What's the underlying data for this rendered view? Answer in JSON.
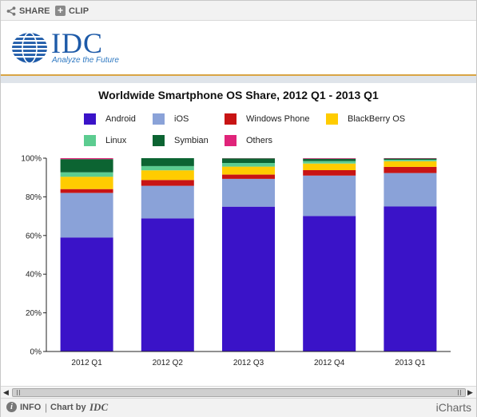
{
  "toolbar": {
    "share_label": "SHARE",
    "clip_label": "CLIP"
  },
  "brand": {
    "name": "IDC",
    "tagline": "Analyze the Future",
    "color": "#1d5aa8"
  },
  "chart_data": {
    "type": "bar",
    "stacked": true,
    "title": "Worldwide Smartphone OS Share, 2012 Q1 - 2013 Q1",
    "categories": [
      "2012 Q1",
      "2012 Q2",
      "2012 Q3",
      "2012 Q4",
      "2013 Q1"
    ],
    "ylim": [
      0,
      100
    ],
    "yticks": [
      "0%",
      "20%",
      "40%",
      "60%",
      "80%",
      "100%"
    ],
    "grid": false,
    "legend_position": "top",
    "series": [
      {
        "name": "Android",
        "color": "#3a13c8",
        "values": [
          59.0,
          68.9,
          74.9,
          70.1,
          75.0
        ]
      },
      {
        "name": "iOS",
        "color": "#8aa2d8",
        "values": [
          23.0,
          16.8,
          14.4,
          20.9,
          17.3
        ]
      },
      {
        "name": "Windows Phone",
        "color": "#c81414",
        "values": [
          2.0,
          3.0,
          2.2,
          2.8,
          3.2
        ]
      },
      {
        "name": "BlackBerry OS",
        "color": "#ffcc00",
        "values": [
          6.4,
          5.0,
          4.1,
          3.4,
          2.9
        ]
      },
      {
        "name": "Linux",
        "color": "#5ccc90",
        "values": [
          2.3,
          2.2,
          1.9,
          1.3,
          0.8
        ]
      },
      {
        "name": "Symbian",
        "color": "#0c6432",
        "values": [
          6.8,
          4.1,
          2.4,
          1.2,
          0.6
        ]
      },
      {
        "name": "Others",
        "color": "#e0247a",
        "values": [
          0.5,
          0.0,
          0.1,
          0.3,
          0.2
        ]
      }
    ]
  },
  "footer": {
    "info_label": "INFO",
    "separator": "|",
    "chart_by": "Chart by",
    "chart_by_brand": "IDC",
    "icharts_label": "iCharts"
  }
}
